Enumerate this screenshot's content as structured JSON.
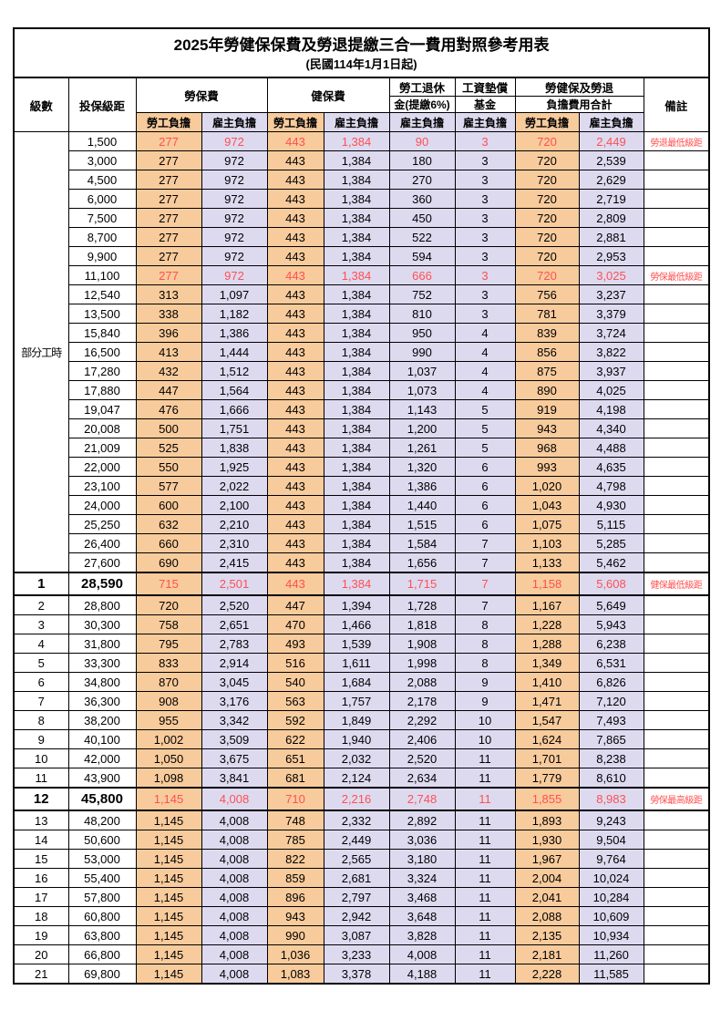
{
  "title": "2025年勞健保保費及勞退提繳三合一費用對照參考用表",
  "subtitle": "(民國114年1月1日起)",
  "header": {
    "level": "級數",
    "bracket": "投保級距",
    "labor_insurance": "勞保費",
    "health_insurance": "健保費",
    "pension_line1": "勞工退休",
    "pension_line2": "金(提繳6%)",
    "wage_fund_line1": "工資墊償",
    "wage_fund_line2": "基金",
    "total_line1": "勞健保及勞退",
    "total_line2": "負擔費用合計",
    "remark": "備註",
    "employee_share": "勞工負擔",
    "employer_share": "雇主負擔"
  },
  "colors": {
    "employee_bg": "#F8CB9C",
    "employer_bg": "#DDDAF0",
    "highlight_red": "#FF5050"
  },
  "table": {
    "part_time_label": "部分工時",
    "part_time_rowspan": 23,
    "rows": [
      {
        "lv": null,
        "b": "1,500",
        "v": [
          "277",
          "972",
          "443",
          "1,384",
          "90",
          "3",
          "720",
          "2,449"
        ],
        "r": "勞退最低級距",
        "red": true,
        "em": false
      },
      {
        "lv": null,
        "b": "3,000",
        "v": [
          "277",
          "972",
          "443",
          "1,384",
          "180",
          "3",
          "720",
          "2,539"
        ],
        "r": "",
        "red": false,
        "em": false
      },
      {
        "lv": null,
        "b": "4,500",
        "v": [
          "277",
          "972",
          "443",
          "1,384",
          "270",
          "3",
          "720",
          "2,629"
        ],
        "r": "",
        "red": false,
        "em": false
      },
      {
        "lv": null,
        "b": "6,000",
        "v": [
          "277",
          "972",
          "443",
          "1,384",
          "360",
          "3",
          "720",
          "2,719"
        ],
        "r": "",
        "red": false,
        "em": false
      },
      {
        "lv": null,
        "b": "7,500",
        "v": [
          "277",
          "972",
          "443",
          "1,384",
          "450",
          "3",
          "720",
          "2,809"
        ],
        "r": "",
        "red": false,
        "em": false
      },
      {
        "lv": null,
        "b": "8,700",
        "v": [
          "277",
          "972",
          "443",
          "1,384",
          "522",
          "3",
          "720",
          "2,881"
        ],
        "r": "",
        "red": false,
        "em": false
      },
      {
        "lv": null,
        "b": "9,900",
        "v": [
          "277",
          "972",
          "443",
          "1,384",
          "594",
          "3",
          "720",
          "2,953"
        ],
        "r": "",
        "red": false,
        "em": false
      },
      {
        "lv": null,
        "b": "11,100",
        "v": [
          "277",
          "972",
          "443",
          "1,384",
          "666",
          "3",
          "720",
          "3,025"
        ],
        "r": "勞保最低級距",
        "red": true,
        "em": false
      },
      {
        "lv": null,
        "b": "12,540",
        "v": [
          "313",
          "1,097",
          "443",
          "1,384",
          "752",
          "3",
          "756",
          "3,237"
        ],
        "r": "",
        "red": false,
        "em": false
      },
      {
        "lv": null,
        "b": "13,500",
        "v": [
          "338",
          "1,182",
          "443",
          "1,384",
          "810",
          "3",
          "781",
          "3,379"
        ],
        "r": "",
        "red": false,
        "em": false
      },
      {
        "lv": null,
        "b": "15,840",
        "v": [
          "396",
          "1,386",
          "443",
          "1,384",
          "950",
          "4",
          "839",
          "3,724"
        ],
        "r": "",
        "red": false,
        "em": false
      },
      {
        "lv": null,
        "b": "16,500",
        "v": [
          "413",
          "1,444",
          "443",
          "1,384",
          "990",
          "4",
          "856",
          "3,822"
        ],
        "r": "",
        "red": false,
        "em": false
      },
      {
        "lv": null,
        "b": "17,280",
        "v": [
          "432",
          "1,512",
          "443",
          "1,384",
          "1,037",
          "4",
          "875",
          "3,937"
        ],
        "r": "",
        "red": false,
        "em": false
      },
      {
        "lv": null,
        "b": "17,880",
        "v": [
          "447",
          "1,564",
          "443",
          "1,384",
          "1,073",
          "4",
          "890",
          "4,025"
        ],
        "r": "",
        "red": false,
        "em": false
      },
      {
        "lv": null,
        "b": "19,047",
        "v": [
          "476",
          "1,666",
          "443",
          "1,384",
          "1,143",
          "5",
          "919",
          "4,198"
        ],
        "r": "",
        "red": false,
        "em": false
      },
      {
        "lv": null,
        "b": "20,008",
        "v": [
          "500",
          "1,751",
          "443",
          "1,384",
          "1,200",
          "5",
          "943",
          "4,340"
        ],
        "r": "",
        "red": false,
        "em": false
      },
      {
        "lv": null,
        "b": "21,009",
        "v": [
          "525",
          "1,838",
          "443",
          "1,384",
          "1,261",
          "5",
          "968",
          "4,488"
        ],
        "r": "",
        "red": false,
        "em": false
      },
      {
        "lv": null,
        "b": "22,000",
        "v": [
          "550",
          "1,925",
          "443",
          "1,384",
          "1,320",
          "6",
          "993",
          "4,635"
        ],
        "r": "",
        "red": false,
        "em": false
      },
      {
        "lv": null,
        "b": "23,100",
        "v": [
          "577",
          "2,022",
          "443",
          "1,384",
          "1,386",
          "6",
          "1,020",
          "4,798"
        ],
        "r": "",
        "red": false,
        "em": false
      },
      {
        "lv": null,
        "b": "24,000",
        "v": [
          "600",
          "2,100",
          "443",
          "1,384",
          "1,440",
          "6",
          "1,043",
          "4,930"
        ],
        "r": "",
        "red": false,
        "em": false
      },
      {
        "lv": null,
        "b": "25,250",
        "v": [
          "632",
          "2,210",
          "443",
          "1,384",
          "1,515",
          "6",
          "1,075",
          "5,115"
        ],
        "r": "",
        "red": false,
        "em": false
      },
      {
        "lv": null,
        "b": "26,400",
        "v": [
          "660",
          "2,310",
          "443",
          "1,384",
          "1,584",
          "7",
          "1,103",
          "5,285"
        ],
        "r": "",
        "red": false,
        "em": false
      },
      {
        "lv": null,
        "b": "27,600",
        "v": [
          "690",
          "2,415",
          "443",
          "1,384",
          "1,656",
          "7",
          "1,133",
          "5,462"
        ],
        "r": "",
        "red": false,
        "em": false
      },
      {
        "lv": "1",
        "b": "28,590",
        "v": [
          "715",
          "2,501",
          "443",
          "1,384",
          "1,715",
          "7",
          "1,158",
          "5,608"
        ],
        "r": "健保最低級距",
        "red": true,
        "em": true
      },
      {
        "lv": "2",
        "b": "28,800",
        "v": [
          "720",
          "2,520",
          "447",
          "1,394",
          "1,728",
          "7",
          "1,167",
          "5,649"
        ],
        "r": "",
        "red": false,
        "em": false
      },
      {
        "lv": "3",
        "b": "30,300",
        "v": [
          "758",
          "2,651",
          "470",
          "1,466",
          "1,818",
          "8",
          "1,228",
          "5,943"
        ],
        "r": "",
        "red": false,
        "em": false
      },
      {
        "lv": "4",
        "b": "31,800",
        "v": [
          "795",
          "2,783",
          "493",
          "1,539",
          "1,908",
          "8",
          "1,288",
          "6,238"
        ],
        "r": "",
        "red": false,
        "em": false
      },
      {
        "lv": "5",
        "b": "33,300",
        "v": [
          "833",
          "2,914",
          "516",
          "1,611",
          "1,998",
          "8",
          "1,349",
          "6,531"
        ],
        "r": "",
        "red": false,
        "em": false
      },
      {
        "lv": "6",
        "b": "34,800",
        "v": [
          "870",
          "3,045",
          "540",
          "1,684",
          "2,088",
          "9",
          "1,410",
          "6,826"
        ],
        "r": "",
        "red": false,
        "em": false
      },
      {
        "lv": "7",
        "b": "36,300",
        "v": [
          "908",
          "3,176",
          "563",
          "1,757",
          "2,178",
          "9",
          "1,471",
          "7,120"
        ],
        "r": "",
        "red": false,
        "em": false
      },
      {
        "lv": "8",
        "b": "38,200",
        "v": [
          "955",
          "3,342",
          "592",
          "1,849",
          "2,292",
          "10",
          "1,547",
          "7,493"
        ],
        "r": "",
        "red": false,
        "em": false
      },
      {
        "lv": "9",
        "b": "40,100",
        "v": [
          "1,002",
          "3,509",
          "622",
          "1,940",
          "2,406",
          "10",
          "1,624",
          "7,865"
        ],
        "r": "",
        "red": false,
        "em": false
      },
      {
        "lv": "10",
        "b": "42,000",
        "v": [
          "1,050",
          "3,675",
          "651",
          "2,032",
          "2,520",
          "11",
          "1,701",
          "8,238"
        ],
        "r": "",
        "red": false,
        "em": false
      },
      {
        "lv": "11",
        "b": "43,900",
        "v": [
          "1,098",
          "3,841",
          "681",
          "2,124",
          "2,634",
          "11",
          "1,779",
          "8,610"
        ],
        "r": "",
        "red": false,
        "em": false
      },
      {
        "lv": "12",
        "b": "45,800",
        "v": [
          "1,145",
          "4,008",
          "710",
          "2,216",
          "2,748",
          "11",
          "1,855",
          "8,983"
        ],
        "r": "勞保最高級距",
        "red": true,
        "em": true
      },
      {
        "lv": "13",
        "b": "48,200",
        "v": [
          "1,145",
          "4,008",
          "748",
          "2,332",
          "2,892",
          "11",
          "1,893",
          "9,243"
        ],
        "r": "",
        "red": false,
        "em": false
      },
      {
        "lv": "14",
        "b": "50,600",
        "v": [
          "1,145",
          "4,008",
          "785",
          "2,449",
          "3,036",
          "11",
          "1,930",
          "9,504"
        ],
        "r": "",
        "red": false,
        "em": false
      },
      {
        "lv": "15",
        "b": "53,000",
        "v": [
          "1,145",
          "4,008",
          "822",
          "2,565",
          "3,180",
          "11",
          "1,967",
          "9,764"
        ],
        "r": "",
        "red": false,
        "em": false
      },
      {
        "lv": "16",
        "b": "55,400",
        "v": [
          "1,145",
          "4,008",
          "859",
          "2,681",
          "3,324",
          "11",
          "2,004",
          "10,024"
        ],
        "r": "",
        "red": false,
        "em": false
      },
      {
        "lv": "17",
        "b": "57,800",
        "v": [
          "1,145",
          "4,008",
          "896",
          "2,797",
          "3,468",
          "11",
          "2,041",
          "10,284"
        ],
        "r": "",
        "red": false,
        "em": false
      },
      {
        "lv": "18",
        "b": "60,800",
        "v": [
          "1,145",
          "4,008",
          "943",
          "2,942",
          "3,648",
          "11",
          "2,088",
          "10,609"
        ],
        "r": "",
        "red": false,
        "em": false
      },
      {
        "lv": "19",
        "b": "63,800",
        "v": [
          "1,145",
          "4,008",
          "990",
          "3,087",
          "3,828",
          "11",
          "2,135",
          "10,934"
        ],
        "r": "",
        "red": false,
        "em": false
      },
      {
        "lv": "20",
        "b": "66,800",
        "v": [
          "1,145",
          "4,008",
          "1,036",
          "3,233",
          "4,008",
          "11",
          "2,181",
          "11,260"
        ],
        "r": "",
        "red": false,
        "em": false
      },
      {
        "lv": "21",
        "b": "69,800",
        "v": [
          "1,145",
          "4,008",
          "1,083",
          "3,378",
          "4,188",
          "11",
          "2,228",
          "11,585"
        ],
        "r": "",
        "red": false,
        "em": false
      }
    ]
  }
}
